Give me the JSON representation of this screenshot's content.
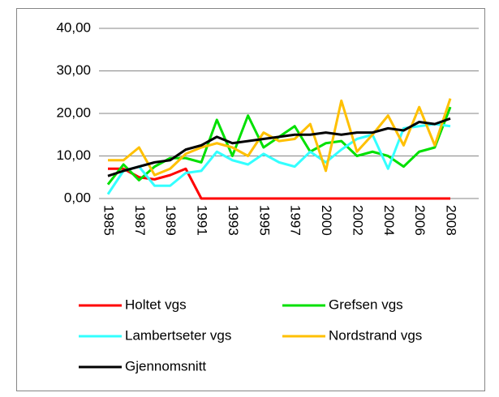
{
  "chart_data": {
    "type": "line",
    "categories": [
      "1985",
      null,
      "1987",
      null,
      "1989",
      null,
      "1991",
      null,
      "1993",
      null,
      "1995",
      null,
      "1997",
      null,
      "2000",
      null,
      "2002",
      null,
      "2004",
      null,
      "2006",
      null,
      "2008"
    ],
    "series": [
      {
        "name": "Holtet vgs",
        "color": "#ff0000",
        "values": [
          7,
          7,
          5,
          4.5,
          5.5,
          7,
          0,
          0,
          0,
          0,
          0,
          0,
          0,
          0,
          0,
          0,
          0,
          0,
          0,
          0,
          0,
          0,
          0
        ]
      },
      {
        "name": "Grefsen vgs",
        "color": "#00e000",
        "values": [
          3.3,
          8,
          4.3,
          7.5,
          9.5,
          9.5,
          8.5,
          18.5,
          10,
          19.5,
          12,
          14.5,
          17,
          11,
          13,
          13.5,
          10,
          11,
          10,
          7.5,
          11,
          12,
          21.5
        ]
      },
      {
        "name": "Lambertseter vgs",
        "color": "#33ffff",
        "values": [
          1,
          6.5,
          7.5,
          3,
          3,
          6,
          6.5,
          11,
          9,
          8,
          10.5,
          8.5,
          7.5,
          11,
          8.5,
          11.5,
          14,
          15,
          7,
          16.5,
          17,
          17.5,
          17
        ]
      },
      {
        "name": "Nordstrand vgs",
        "color": "#ffc000",
        "values": [
          9,
          9,
          12,
          5.5,
          7,
          10.5,
          12,
          13,
          12,
          10,
          15.5,
          13.5,
          14,
          17.5,
          6.5,
          23,
          11,
          15,
          19.5,
          12.5,
          21.5,
          12.5,
          23.5
        ]
      },
      {
        "name": "Gjennomsnitt",
        "color": "#000000",
        "values": [
          5.3,
          6.5,
          7.5,
          8.5,
          9,
          11.5,
          12.5,
          14.5,
          13,
          13.5,
          14,
          14.5,
          15,
          15,
          15.5,
          15,
          15.5,
          15.5,
          16.5,
          16,
          18,
          17.5,
          18.8
        ]
      }
    ],
    "ylim": [
      0,
      40
    ],
    "yticks": [
      {
        "value": 0,
        "label": "0,00"
      },
      {
        "value": 10,
        "label": "10,00"
      },
      {
        "value": 20,
        "label": "20,00"
      },
      {
        "value": 30,
        "label": "30,00"
      },
      {
        "value": 40,
        "label": "40,00"
      }
    ],
    "grid": true
  }
}
